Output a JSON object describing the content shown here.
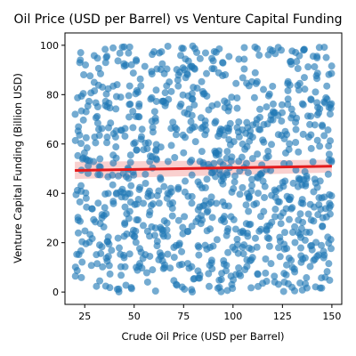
{
  "chart_data": {
    "type": "scatter",
    "title": "Oil Price (USD per Barrel) vs Venture Capital Funding",
    "xlabel": "Crude Oil Price (USD per Barrel)",
    "ylabel": "Venture Capital Funding (Billion USD)",
    "xlim": [
      15,
      155
    ],
    "ylim": [
      -5,
      105
    ],
    "x_ticks": [
      25,
      50,
      75,
      100,
      125,
      150
    ],
    "y_ticks": [
      0,
      20,
      40,
      60,
      80,
      100
    ],
    "grid": false,
    "legend": "none",
    "point_color": "#1f77b4",
    "trend_color": "#e41a1c",
    "band_color": "#f4a9a8",
    "trend_line": {
      "x": [
        20,
        150
      ],
      "y": [
        49.3,
        51.0
      ]
    },
    "confidence_band": {
      "x": [
        20,
        150
      ],
      "upper": [
        52.8,
        53.6
      ],
      "lower": [
        45.8,
        48.4
      ]
    },
    "sample_count": 1000,
    "x_range": [
      20,
      150
    ],
    "y_range": [
      0,
      100
    ]
  }
}
